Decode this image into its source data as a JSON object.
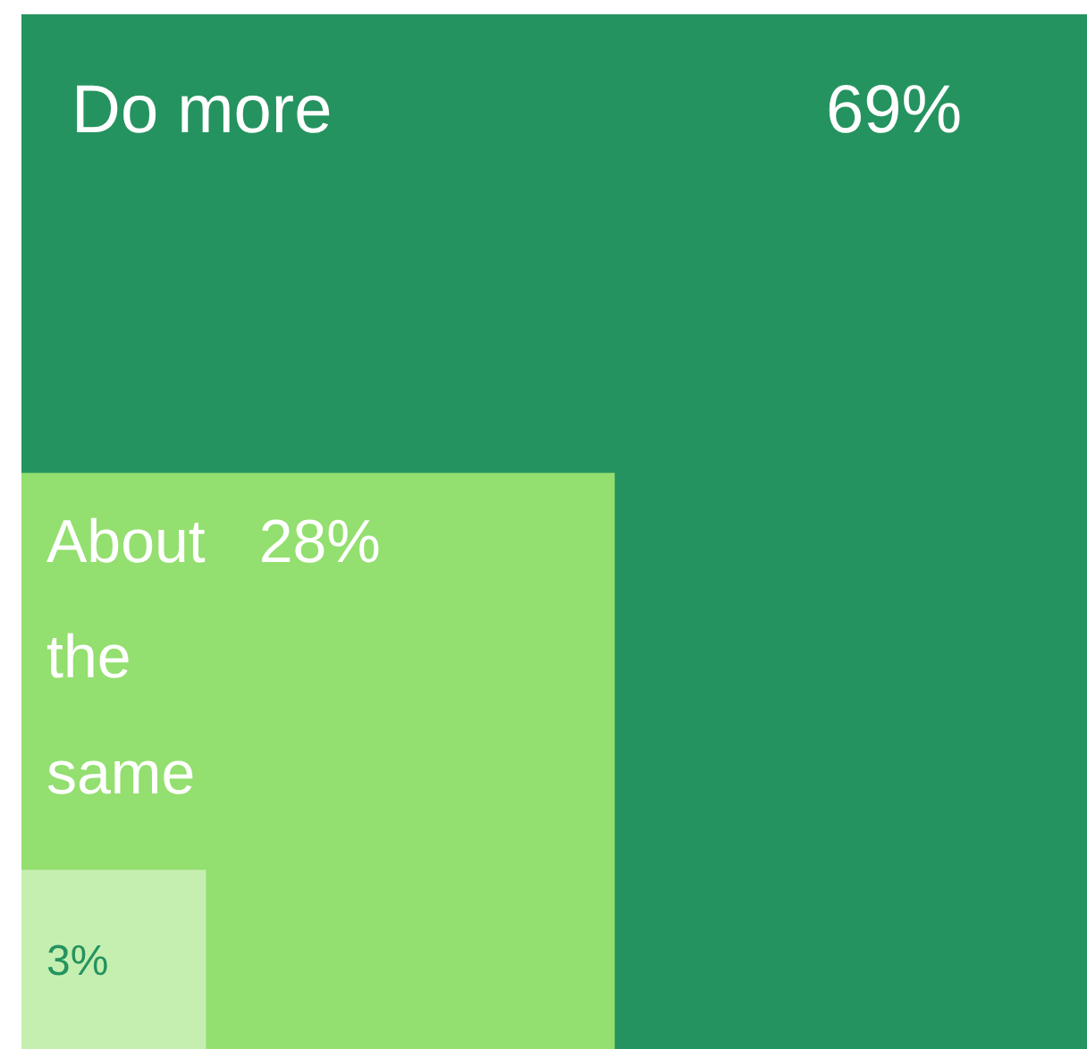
{
  "chart_data": {
    "type": "other",
    "categories": [
      "Do more",
      "About the same",
      null
    ],
    "values": [
      69,
      28,
      3
    ],
    "value_labels": [
      "69%",
      "28%",
      "3%"
    ],
    "colors": [
      "#25935f",
      "#93df6f",
      "#c5efb0"
    ]
  }
}
